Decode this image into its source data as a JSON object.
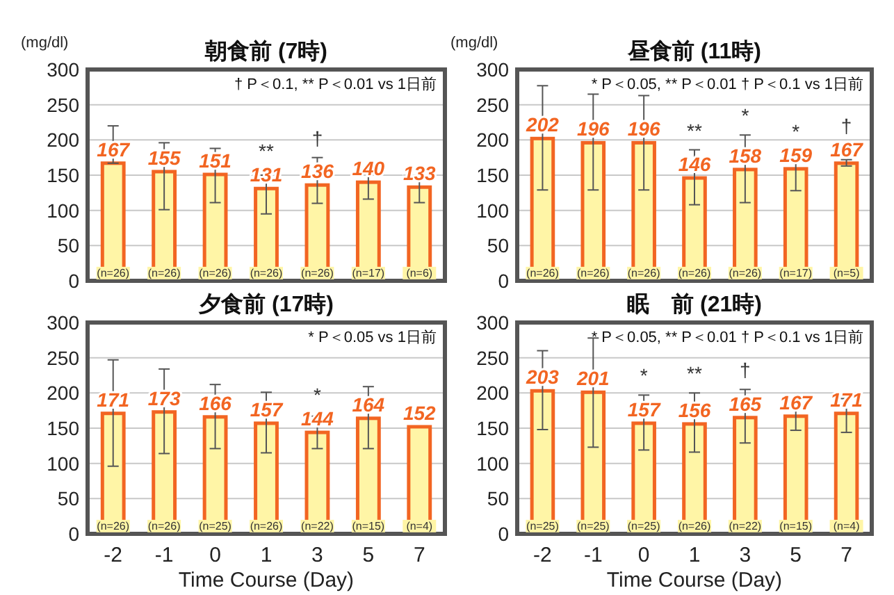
{
  "chart_data": [
    {
      "type": "bar",
      "title": "朝食前 (7時)",
      "ylabel": "(mg/dl)",
      "categories": [
        "-2",
        "-1",
        "0",
        "1",
        "3",
        "5",
        "7"
      ],
      "color": "#fff5a6",
      "values": [
        167,
        155,
        151,
        131,
        136,
        140,
        133
      ],
      "errors": [
        [
          167,
          220
        ],
        [
          101,
          196
        ],
        [
          111,
          188
        ],
        [
          95,
          150
        ],
        [
          110,
          175
        ],
        [
          116,
          155
        ],
        [
          111,
          146
        ]
      ],
      "ylim": [
        0,
        300
      ],
      "yticks": [
        0,
        50,
        100,
        150,
        200,
        250,
        300
      ],
      "grid": "y",
      "data_labels": true,
      "tick_labels": "y",
      "annotations": [
        "† P＜0.1, ** P＜0.01 vs 1日前",
        {
          "text": "**",
          "x": "1",
          "y": 150
        },
        {
          "text": "†",
          "x": "3",
          "y": 175
        },
        {
          "text": "(n=26)",
          "x": "-2",
          "y": 12
        },
        {
          "text": "(n=26)",
          "x": "-1",
          "y": 12
        },
        {
          "text": "(n=26)",
          "x": "0",
          "y": 12
        },
        {
          "text": "(n=26)",
          "x": "1",
          "y": 12
        },
        {
          "text": "(n=26)",
          "x": "3",
          "y": 12
        },
        {
          "text": "(n=17)",
          "x": "5",
          "y": 12
        },
        {
          "text": "(n=6)",
          "x": "7",
          "y": 12
        }
      ]
    },
    {
      "type": "bar",
      "title": "昼食前 (11時)",
      "ylabel": "(mg/dl)",
      "categories": [
        "-2",
        "-1",
        "0",
        "1",
        "3",
        "5",
        "7"
      ],
      "color": "#fff5a6",
      "values": [
        202,
        196,
        196,
        146,
        158,
        159,
        167
      ],
      "errors": [
        [
          129,
          277
        ],
        [
          129,
          265
        ],
        [
          129,
          263
        ],
        [
          108,
          186
        ],
        [
          111,
          207
        ],
        [
          128,
          179
        ],
        [
          163,
          172
        ]
      ],
      "ylim": [
        0,
        300
      ],
      "yticks": [
        0,
        50,
        100,
        150,
        200,
        250,
        300
      ],
      "grid": "y",
      "data_labels": true,
      "tick_labels": "y",
      "annotations": [
        "* P＜0.05, ** P＜0.01 † P＜0.1 vs 1日前",
        {
          "text": "**",
          "x": "1",
          "y": 186
        },
        {
          "text": "*",
          "x": "3",
          "y": 207
        },
        {
          "text": "*",
          "x": "5",
          "y": 179
        },
        {
          "text": "†",
          "x": "7",
          "y": 172
        },
        {
          "text": "(n=26)",
          "x": "-2",
          "y": 12
        },
        {
          "text": "(n=26)",
          "x": "-1",
          "y": 12
        },
        {
          "text": "(n=26)",
          "x": "0",
          "y": 12
        },
        {
          "text": "(n=26)",
          "x": "1",
          "y": 12
        },
        {
          "text": "(n=26)",
          "x": "3",
          "y": 12
        },
        {
          "text": "(n=17)",
          "x": "5",
          "y": 12
        },
        {
          "text": "(n=5)",
          "x": "7",
          "y": 12
        }
      ]
    },
    {
      "type": "bar",
      "title": "夕食前 (17時)",
      "xlabel": "Time Course (Day)",
      "categories": [
        "-2",
        "-1",
        "0",
        "1",
        "3",
        "5",
        "7"
      ],
      "color": "#fff5a6",
      "values": [
        171,
        173,
        166,
        157,
        144,
        164,
        152
      ],
      "errors": [
        [
          96,
          247
        ],
        [
          114,
          234
        ],
        [
          121,
          212
        ],
        [
          115,
          201
        ],
        [
          121,
          167
        ],
        [
          121,
          209
        ],
        null
      ],
      "ylim": [
        0,
        300
      ],
      "yticks": [
        0,
        50,
        100,
        150,
        200,
        250,
        300
      ],
      "grid": "y",
      "data_labels": true,
      "annotations": [
        "* P＜0.05 vs 1日前",
        {
          "text": "*",
          "x": "3",
          "y": 167
        },
        {
          "text": "(n=26)",
          "x": "-2",
          "y": 12
        },
        {
          "text": "(n=26)",
          "x": "-1",
          "y": 12
        },
        {
          "text": "(n=25)",
          "x": "0",
          "y": 12
        },
        {
          "text": "(n=26)",
          "x": "1",
          "y": 12
        },
        {
          "text": "(n=22)",
          "x": "3",
          "y": 12
        },
        {
          "text": "(n=15)",
          "x": "5",
          "y": 12
        },
        {
          "text": "(n=4)",
          "x": "7",
          "y": 12
        }
      ]
    },
    {
      "type": "bar",
      "title": "眠　前 (21時)",
      "xlabel": "Time Course (Day)",
      "categories": [
        "-2",
        "-1",
        "0",
        "1",
        "3",
        "5",
        "7"
      ],
      "color": "#fff5a6",
      "values": [
        203,
        201,
        157,
        156,
        165,
        167,
        171
      ],
      "errors": [
        [
          148,
          260
        ],
        [
          123,
          278
        ],
        [
          119,
          197
        ],
        [
          116,
          200
        ],
        [
          129,
          205
        ],
        [
          147,
          188
        ],
        [
          144,
          192
        ]
      ],
      "ylim": [
        0,
        300
      ],
      "yticks": [
        0,
        50,
        100,
        150,
        200,
        250,
        300
      ],
      "grid": "y",
      "data_labels": true,
      "annotations": [
        "* P＜0.05, ** P＜0.01 † P＜0.1 vs 1日前",
        {
          "text": "*",
          "x": "0",
          "y": 197
        },
        {
          "text": "**",
          "x": "1",
          "y": 200
        },
        {
          "text": "†",
          "x": "3",
          "y": 205
        },
        {
          "text": "(n=25)",
          "x": "-2",
          "y": 12
        },
        {
          "text": "(n=25)",
          "x": "-1",
          "y": 12
        },
        {
          "text": "(n=25)",
          "x": "0",
          "y": 12
        },
        {
          "text": "(n=26)",
          "x": "1",
          "y": 12
        },
        {
          "text": "(n=22)",
          "x": "3",
          "y": 12
        },
        {
          "text": "(n=15)",
          "x": "5",
          "y": 12
        },
        {
          "text": "(n=4)",
          "x": "7",
          "y": 12
        }
      ]
    }
  ]
}
